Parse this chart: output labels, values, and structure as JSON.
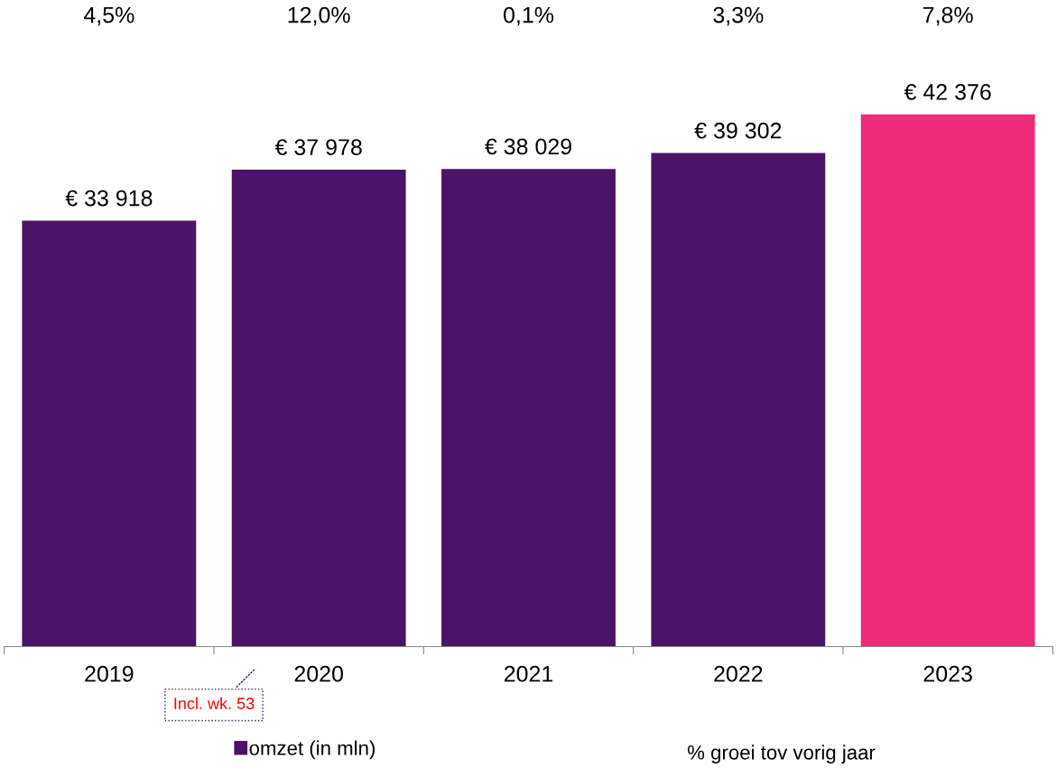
{
  "chart_data": {
    "type": "bar",
    "categories": [
      "2019",
      "2020",
      "2021",
      "2022",
      "2023"
    ],
    "series": [
      {
        "name": "omzet (in mln)",
        "color": "#4b1269",
        "colors": [
          "#4b1269",
          "#4b1269",
          "#4b1269",
          "#4b1269",
          "#ee2a7b"
        ],
        "values": [
          33918,
          37978,
          38029,
          39302,
          42376
        ],
        "value_labels": [
          "€ 33 918",
          "€ 37 978",
          "€ 38 029",
          "€ 39 302",
          "€ 42 376"
        ]
      }
    ],
    "annotations": [
      "4,5%",
      "12,0%",
      "0,1%",
      "3,3%",
      "7,8%",
      "Incl. wk. 53",
      "% groei tov vorig jaar"
    ],
    "legend": "bottom",
    "grid": false
  }
}
